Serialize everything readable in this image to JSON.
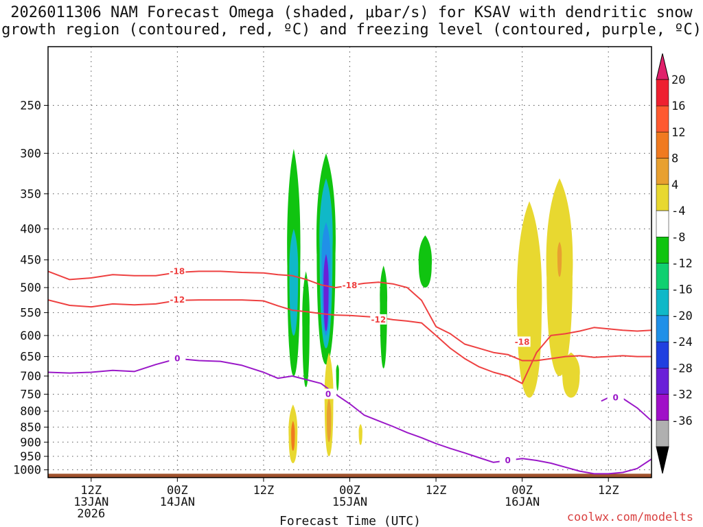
{
  "title_line1": "2026011306 NAM Forecast Omega (shaded, μbar/s) for KSAV with dendritic snow",
  "title_line2": "growth region (contoured, red, ºC) and freezing level (contoured, purple, ºC)",
  "credit": "coolwx.com/modelts",
  "chart_data": {
    "type": "time-height cross section",
    "xlabel": "Forecast Time (UTC)",
    "ylabel": "",
    "x_unit": "forecast hours from 2026-01-13 06Z",
    "xlim": [
      0,
      84
    ],
    "y_unit": "hPa",
    "ylim": [
      1030,
      200
    ],
    "y_ticks": [
      250,
      300,
      350,
      400,
      450,
      500,
      550,
      600,
      650,
      700,
      750,
      800,
      850,
      900,
      950,
      1000
    ],
    "x_ticks": [
      {
        "hour": 6,
        "lines": [
          "12Z",
          "13JAN",
          "2026"
        ]
      },
      {
        "hour": 18,
        "lines": [
          "00Z",
          "14JAN"
        ]
      },
      {
        "hour": 30,
        "lines": [
          "12Z"
        ]
      },
      {
        "hour": 42,
        "lines": [
          "00Z",
          "15JAN"
        ]
      },
      {
        "hour": 54,
        "lines": [
          "12Z"
        ]
      },
      {
        "hour": 66,
        "lines": [
          "00Z",
          "16JAN"
        ]
      },
      {
        "hour": 78,
        "lines": [
          "12Z"
        ]
      }
    ],
    "grid": true,
    "colorbar": {
      "labels": [
        "20",
        "16",
        "12",
        "8",
        "4",
        "-4",
        "-8",
        "-12",
        "-16",
        "-20",
        "-24",
        "-28",
        "-32",
        "-36"
      ],
      "colors": [
        "#ee2030",
        "#ff5a30",
        "#f07a20",
        "#e8a030",
        "#e8d830",
        "#ffffff",
        "#10c410",
        "#10d070",
        "#10b8c8",
        "#2090e8",
        "#2040e0",
        "#6a20d8",
        "#a010c8",
        "#b0b0b0"
      ],
      "top_arrow_color": "#e0206a",
      "bottom_arrow_color": "#000000"
    },
    "omega_fields": [
      {
        "value": -8,
        "color": "#10c410",
        "center": [
          34.2,
          460
        ],
        "half_width": 0.9,
        "bottom": 700,
        "top": 295
      },
      {
        "value": -12,
        "color": "#10b8c8",
        "center": [
          34.2,
          480
        ],
        "half_width": 0.6,
        "bottom": 600,
        "top": 400
      },
      {
        "value": -8,
        "color": "#10c410",
        "center": [
          35.9,
          580
        ],
        "half_width": 0.5,
        "bottom": 730,
        "top": 470
      },
      {
        "value": -8,
        "color": "#10c410",
        "center": [
          38.7,
          440
        ],
        "half_width": 1.3,
        "bottom": 670,
        "top": 300
      },
      {
        "value": -12,
        "color": "#10b8c8",
        "center": [
          38.7,
          430
        ],
        "half_width": 0.9,
        "bottom": 630,
        "top": 330
      },
      {
        "value": -16,
        "color": "#2090e8",
        "center": [
          38.7,
          460
        ],
        "half_width": 0.6,
        "bottom": 600,
        "top": 390
      },
      {
        "value": -24,
        "color": "#6a20d8",
        "center": [
          38.7,
          500
        ],
        "half_width": 0.35,
        "bottom": 590,
        "top": 440
      },
      {
        "value": -8,
        "color": "#10c410",
        "center": [
          40.3,
          690
        ],
        "half_width": 0.2,
        "bottom": 740,
        "top": 670
      },
      {
        "value": -8,
        "color": "#10c410",
        "center": [
          46.7,
          530
        ],
        "half_width": 0.5,
        "bottom": 680,
        "top": 460
      },
      {
        "value": -8,
        "color": "#10c410",
        "center": [
          52.5,
          460
        ],
        "half_width": 0.9,
        "bottom": 500,
        "top": 410
      },
      {
        "value": 4,
        "color": "#e8d830",
        "center": [
          34.1,
          880
        ],
        "half_width": 0.6,
        "bottom": 975,
        "top": 780
      },
      {
        "value": 12,
        "color": "#f07a20",
        "center": [
          34.1,
          880
        ],
        "half_width": 0.25,
        "bottom": 930,
        "top": 830
      },
      {
        "value": 4,
        "color": "#e8d830",
        "center": [
          39.1,
          780
        ],
        "half_width": 0.6,
        "bottom": 950,
        "top": 640
      },
      {
        "value": 8,
        "color": "#e8a030",
        "center": [
          39.1,
          830
        ],
        "half_width": 0.3,
        "bottom": 900,
        "top": 760
      },
      {
        "value": 4,
        "color": "#e8d830",
        "center": [
          43.5,
          870
        ],
        "half_width": 0.25,
        "bottom": 910,
        "top": 840
      },
      {
        "value": 4,
        "color": "#e8d830",
        "center": [
          67.0,
          550
        ],
        "half_width": 1.7,
        "bottom": 760,
        "top": 360
      },
      {
        "value": 4,
        "color": "#e8d830",
        "center": [
          71.2,
          480
        ],
        "half_width": 1.8,
        "bottom": 700,
        "top": 330
      },
      {
        "value": 8,
        "color": "#e8a030",
        "center": [
          71.2,
          445
        ],
        "half_width": 0.3,
        "bottom": 480,
        "top": 420
      },
      {
        "value": 4,
        "color": "#e8d830",
        "center": [
          72.8,
          700
        ],
        "half_width": 1.2,
        "bottom": 760,
        "top": 640
      }
    ],
    "series": [
      {
        "name": "-18 °C isotherm",
        "label": "-18",
        "color": "#ee4040",
        "x": [
          0,
          3,
          6,
          9,
          12,
          15,
          18,
          21,
          24,
          27,
          30,
          32,
          34,
          36,
          38,
          40,
          42,
          44,
          46,
          48,
          50,
          52,
          54,
          56,
          58,
          60,
          62,
          64,
          66,
          68,
          70,
          72,
          74,
          76,
          78,
          80,
          82,
          84
        ],
        "y": [
          470,
          485,
          482,
          476,
          478,
          478,
          472,
          470,
          470,
          472,
          473,
          476,
          478,
          485,
          495,
          500,
          496,
          492,
          490,
          493,
          500,
          525,
          580,
          596,
          620,
          630,
          640,
          645,
          660,
          660,
          655,
          650,
          648,
          652,
          650,
          648,
          650,
          650
        ],
        "label_positions": [
          [
            18,
            470
          ],
          [
            42,
            496
          ],
          [
            66,
            615
          ]
        ]
      },
      {
        "name": "-12 °C isotherm",
        "label": "-12",
        "color": "#ee4040",
        "x": [
          0,
          3,
          6,
          9,
          12,
          15,
          18,
          21,
          24,
          27,
          30,
          32,
          34,
          36,
          38,
          40,
          42,
          44,
          46,
          48,
          50,
          52,
          54,
          56,
          58,
          60,
          62,
          64,
          66,
          68,
          70,
          72,
          74,
          76,
          78,
          80,
          82,
          84
        ],
        "y": [
          524,
          535,
          538,
          532,
          534,
          532,
          525,
          524,
          524,
          524,
          526,
          536,
          545,
          548,
          552,
          555,
          556,
          558,
          560,
          565,
          568,
          572,
          600,
          630,
          655,
          676,
          690,
          700,
          720,
          640,
          600,
          596,
          590,
          582,
          585,
          588,
          590,
          588
        ],
        "label_positions": [
          [
            18,
            524
          ],
          [
            46,
            565
          ]
        ]
      },
      {
        "name": "0 °C freezing level",
        "label": "0",
        "color": "#9a18c8",
        "x": [
          0,
          3,
          6,
          9,
          12,
          15,
          18,
          21,
          24,
          27,
          30,
          32,
          34,
          36,
          38,
          40,
          42,
          44,
          46,
          48,
          50,
          52,
          54,
          56,
          58,
          60,
          62,
          64,
          66,
          68,
          70,
          72,
          74,
          76,
          78,
          80,
          82,
          84
        ],
        "y": [
          690,
          692,
          690,
          685,
          688,
          670,
          655,
          660,
          662,
          672,
          690,
          706,
          700,
          710,
          720,
          750,
          778,
          812,
          830,
          848,
          868,
          885,
          905,
          922,
          938,
          955,
          972,
          965,
          958,
          965,
          975,
          990,
          1005,
          1015,
          1015,
          1010,
          995,
          960
        ],
        "label_positions": [
          [
            18,
            655
          ],
          [
            39,
            750
          ],
          [
            64,
            965
          ]
        ]
      },
      {
        "name": "0 °C freezing level (upper branch)",
        "label": "0",
        "color": "#9a18c8",
        "x": [
          77,
          78,
          80,
          82,
          84
        ],
        "y": [
          770,
          760,
          762,
          790,
          830
        ],
        "label_positions": [
          [
            79,
            760
          ]
        ]
      }
    ],
    "terrain": {
      "color": "#a0522d",
      "top_hpa": 1015
    }
  }
}
